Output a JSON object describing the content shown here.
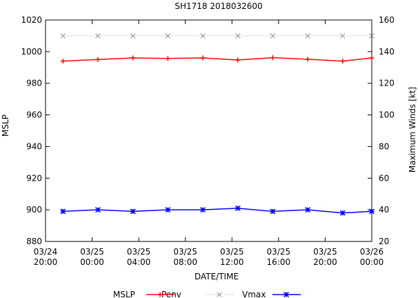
{
  "chart_data": {
    "type": "line",
    "title": "SH1718 2018032600",
    "xlabel": "DATE/TIME",
    "ylabel_left": "MSLP",
    "ylabel_right": "Maximum Winds [kt]",
    "x_range": [
      0,
      28
    ],
    "ylim_left": [
      880,
      1020
    ],
    "ylim_right": [
      20,
      160
    ],
    "yticks_left": [
      880,
      900,
      920,
      940,
      960,
      980,
      1000,
      1020
    ],
    "yticks_right": [
      20,
      40,
      60,
      80,
      100,
      120,
      140,
      160
    ],
    "xticks": [
      {
        "x": 0,
        "line1": "03/24",
        "line2": "20:00"
      },
      {
        "x": 4,
        "line1": "03/25",
        "line2": "00:00"
      },
      {
        "x": 8,
        "line1": "03/25",
        "line2": "04:00"
      },
      {
        "x": 12,
        "line1": "03/25",
        "line2": "08:00"
      },
      {
        "x": 16,
        "line1": "03/25",
        "line2": "12:00"
      },
      {
        "x": 20,
        "line1": "03/25",
        "line2": "16:00"
      },
      {
        "x": 24,
        "line1": "03/25",
        "line2": "20:00"
      },
      {
        "x": 28,
        "line1": "03/26",
        "line2": "00:00"
      }
    ],
    "grid": false,
    "legend_position": "bottom",
    "legend_title": "MSLP",
    "x": [
      1.5,
      4.5,
      7.5,
      10.5,
      13.5,
      16.5,
      19.5,
      22.5,
      25.5,
      28.0
    ],
    "series": [
      {
        "name": "Penv",
        "axis": "left",
        "color": "#ff0000",
        "marker": "plus",
        "line": "solid",
        "values": [
          994,
          995,
          996,
          995.7,
          996,
          994.7,
          996.2,
          995.2,
          994,
          996
        ]
      },
      {
        "name": "Vmax",
        "axis": "right",
        "color": "#808080",
        "marker": "x",
        "line": "dotted",
        "values": [
          150,
          150,
          150,
          150,
          150,
          150,
          150,
          150,
          150,
          150
        ]
      },
      {
        "name": "MSLP",
        "axis": "left",
        "color": "#0000ff",
        "marker": "star",
        "line": "solid",
        "values": [
          899,
          900,
          899,
          900,
          900,
          901,
          899,
          900,
          898,
          899
        ]
      }
    ]
  }
}
